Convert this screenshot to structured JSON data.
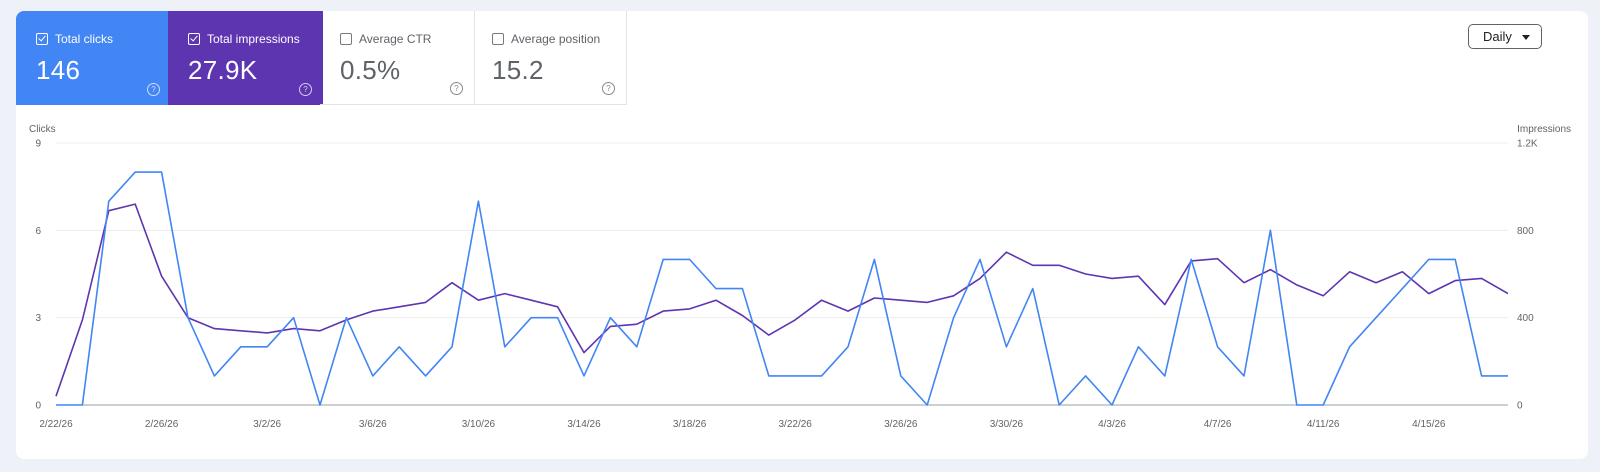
{
  "metrics": [
    {
      "label": "Total clicks",
      "value": "146",
      "checked": true,
      "color": "#4285f4"
    },
    {
      "label": "Total impressions",
      "value": "27.9K",
      "checked": true,
      "color": "#5e35b1"
    },
    {
      "label": "Average CTR",
      "value": "0.5%",
      "checked": false
    },
    {
      "label": "Average position",
      "value": "15.2",
      "checked": false
    }
  ],
  "help_icon": "question-circle-icon",
  "granularity": {
    "label": "Daily",
    "icon": "caret-down-icon"
  },
  "chart_data": {
    "type": "line",
    "left_axis": {
      "label": "Clicks",
      "ticks": [
        "0",
        "3",
        "6",
        "9"
      ],
      "range": [
        0,
        9
      ]
    },
    "right_axis": {
      "label": "Impressions",
      "ticks": [
        "0",
        "400",
        "800",
        "1.2K"
      ],
      "range": [
        0,
        1200
      ]
    },
    "x_labels": [
      "2/22/26",
      "2/26/26",
      "3/2/26",
      "3/6/26",
      "3/10/26",
      "3/14/26",
      "3/18/26",
      "3/22/26",
      "3/26/26",
      "3/30/26",
      "4/3/26",
      "4/7/26",
      "4/11/26",
      "4/15/26"
    ],
    "x_label_interval_days": 4,
    "grid": true,
    "series": [
      {
        "name": "Clicks",
        "axis": "left",
        "color": "#4285f4",
        "values": [
          0,
          0,
          7,
          8,
          8,
          3,
          1,
          2,
          2,
          3,
          0,
          3,
          1,
          2,
          1,
          2,
          7,
          2,
          3,
          3,
          1,
          3,
          2,
          5,
          5,
          4,
          4,
          1,
          1,
          1,
          2,
          5,
          1,
          0,
          3,
          5,
          2,
          4,
          0,
          1,
          0,
          2,
          1,
          5,
          2,
          1,
          6,
          0,
          0,
          2,
          3,
          4,
          5,
          5,
          1,
          1
        ]
      },
      {
        "name": "Impressions",
        "axis": "right",
        "color": "#5e35b1",
        "values": [
          40,
          390,
          890,
          920,
          590,
          400,
          350,
          340,
          330,
          350,
          340,
          390,
          430,
          450,
          470,
          560,
          480,
          510,
          480,
          450,
          240,
          360,
          370,
          430,
          440,
          480,
          410,
          320,
          390,
          480,
          430,
          490,
          480,
          470,
          500,
          580,
          700,
          640,
          640,
          600,
          580,
          590,
          460,
          660,
          670,
          560,
          620,
          550,
          500,
          610,
          560,
          610,
          510,
          570,
          580,
          510
        ]
      }
    ]
  }
}
